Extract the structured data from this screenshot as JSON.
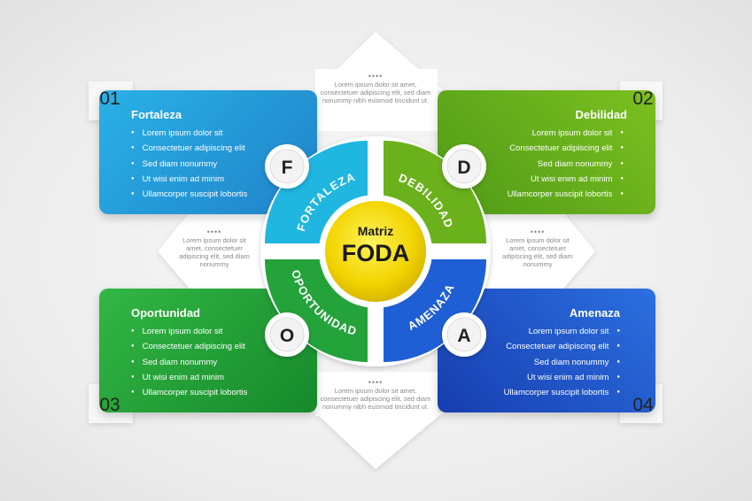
{
  "center": {
    "line1": "Matriz",
    "line2": "FODA"
  },
  "quadrants": [
    {
      "number": "01",
      "letter": "F",
      "title": "Fortaleza",
      "ring_label": "FORTALEZA",
      "color": "#1f9ad6"
    },
    {
      "number": "02",
      "letter": "D",
      "title": "Debilidad",
      "ring_label": "DEBILIDAD",
      "color": "#6aad1b"
    },
    {
      "number": "03",
      "letter": "O",
      "title": "Oportunidad",
      "ring_label": "OPORTUNIDAD",
      "color": "#22a33a"
    },
    {
      "number": "04",
      "letter": "A",
      "title": "Amenaza",
      "ring_label": "AMENAZA",
      "color": "#1f55cc"
    }
  ],
  "bullets": [
    "Lorem ipsum dolor sit",
    "Consectetuer adipiscing elit",
    "Sed diam nonummy",
    "Ut wisi enim ad minim",
    "Ullamcorper suscipit lobortis"
  ],
  "notes": {
    "dots": "••••",
    "top_bottom": "Lorem ipsum dolor sit amet, consectetuer adipiscing elit, sed diam nonummy nibh euismod tincidunt ut.",
    "sides": "Lorem ipsum dolor sit amet, consectetuer adipiscing elit, sed diam nonummy"
  }
}
